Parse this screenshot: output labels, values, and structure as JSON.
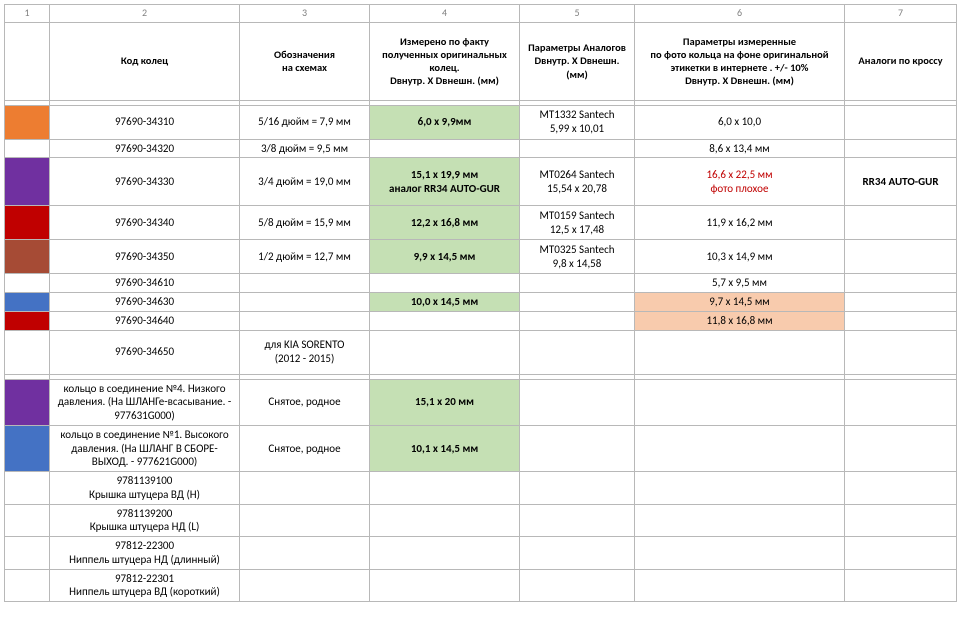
{
  "colnums": [
    "1",
    "2",
    "3",
    "4",
    "5",
    "6",
    "7"
  ],
  "headers": {
    "c2": "Код колец",
    "c3": "Обозначения\nна схемах",
    "c4": "Измерено по факту полученных оригинальных колец.\nDвнутр.  X  Dвнешн. (мм)",
    "c5": "Параметры Аналогов\nDвнутр.  X  Dвнешн. (мм)",
    "c6": "Параметры измеренные\nпо фото кольца на фоне оригинальной этикетки в интернете . +/- 10%\nDвнутр.  X  Dвнешн. (мм)",
    "c7": "Аналоги по кроссу"
  },
  "colors": {
    "orange": "#ed7d31",
    "purple": "#7030a0",
    "red": "#c00000",
    "blue": "#4472c4",
    "brown": "#a64b35"
  },
  "rows": {
    "r1": {
      "swatch": "orange",
      "code": "97690-34310",
      "scheme": "5/16 дюйм = 7,9 мм",
      "meas": "6,0 x 9,9мм",
      "analog": "MT1332 Santech\n5,99 x 10,01",
      "photo": "6,0 x 10,0",
      "cross": ""
    },
    "r2": {
      "swatch": "",
      "code": "97690-34320",
      "scheme": "3/8 дюйм = 9,5 мм",
      "meas": "",
      "analog": "",
      "photo": "8,6  x 13,4 мм",
      "cross": ""
    },
    "r3": {
      "swatch": "purple",
      "code": "97690-34330",
      "scheme": "3/4 дюйм = 19,0 мм",
      "meas": "15,1 x 19,9 мм\nаналог RR34 AUTO-GUR",
      "analog": "MT0264 Santech\n15,54 x 20,78",
      "photo": "16,6 x 22,5 мм\nфото плохое",
      "cross": "RR34 AUTO-GUR"
    },
    "r4": {
      "swatch": "red",
      "code": "97690-34340",
      "scheme": "5/8 дюйм = 15,9 мм",
      "meas": "12,2 x  16,8 мм",
      "analog": "MT0159 Santech\n12,5 x 17,48",
      "photo": "11,9 x 16,2 мм",
      "cross": ""
    },
    "r5": {
      "swatch": "brown",
      "code": "97690-34350",
      "scheme": "1/2 дюйм = 12,7 мм",
      "meas": "9,9 x 14,5 мм",
      "analog": "MT0325 Santech\n9,8 x 14,58",
      "photo": "10,3 x 14,9 мм",
      "cross": ""
    },
    "r6": {
      "swatch": "",
      "code": "97690-34610",
      "scheme": "",
      "meas": "",
      "analog": "",
      "photo": "5,7 x 9,5 мм",
      "cross": ""
    },
    "r7": {
      "swatch": "blue",
      "code": "97690-34630",
      "scheme": "",
      "meas": "10,0 x 14,5 мм",
      "analog": "",
      "photo": "9,7 x 14,5 мм",
      "cross": ""
    },
    "r8": {
      "swatch": "red",
      "code": "97690-34640",
      "scheme": "",
      "meas": "",
      "analog": "",
      "photo": "11,8 x 16,8 мм",
      "cross": ""
    },
    "r9": {
      "swatch": "",
      "code": "97690-34650",
      "scheme": "для KIA SORENTO\n(2012 - 2015)",
      "meas": "",
      "analog": "",
      "photo": "",
      "cross": ""
    },
    "r10": {
      "swatch": "purple",
      "code": "кольцо в соединение №4. Низкого давления. (На ШЛАНГе-всасывание. - 977631G000)",
      "scheme": "Снятое, родное",
      "meas": "15,1 x 20 мм",
      "analog": "",
      "photo": "",
      "cross": ""
    },
    "r11": {
      "swatch": "blue",
      "code": "кольцо в соединение №1. Высокого давления. (На ШЛАНГ В СБОРЕ-ВЫХОД. - 977621G000)",
      "scheme": "Снятое, родное",
      "meas": "10,1 x 14,5 мм",
      "analog": "",
      "photo": "",
      "cross": ""
    },
    "r12": {
      "code": "9781139100\nКрышка штуцера ВД (H)"
    },
    "r13": {
      "code": "9781139200\nКрышка штуцера НД (L)"
    },
    "r14": {
      "code": "97812-22300\nНиппель штуцера НД (длинный)"
    },
    "r15": {
      "code": "97812-22301\nНиппель штуцера ВД (короткий)"
    }
  }
}
